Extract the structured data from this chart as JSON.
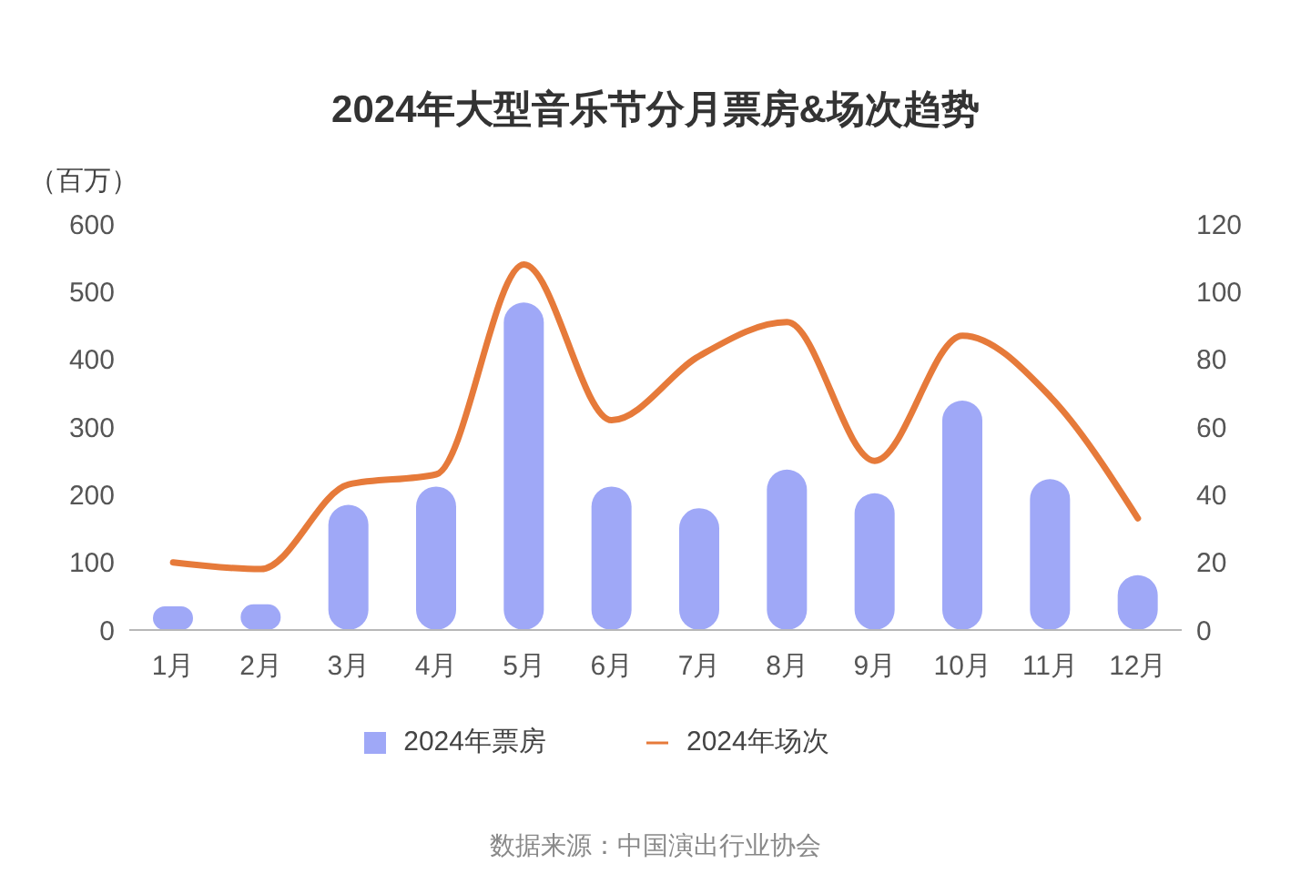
{
  "chart_data": {
    "type": "bar",
    "title": "2024年大型音乐节分月票房&场次趋势",
    "ylabel": "（百万）",
    "categories": [
      "1月",
      "2月",
      "3月",
      "4月",
      "5月",
      "6月",
      "7月",
      "8月",
      "9月",
      "10月",
      "11月",
      "12月"
    ],
    "series": [
      {
        "name": "2024年票房",
        "color": "#9fa8f7",
        "values": [
          35,
          38,
          185,
          212,
          484,
          212,
          180,
          237,
          202,
          339,
          223,
          81
        ]
      },
      {
        "name": "2024年场次",
        "type": "line",
        "axis": "y2",
        "color": "#e67a3a",
        "values": [
          20,
          18,
          43,
          46,
          108,
          62,
          81,
          91,
          50,
          87,
          69,
          33
        ]
      }
    ],
    "ylim": [
      0,
      600
    ],
    "yticks": [
      0,
      100,
      200,
      300,
      400,
      500,
      600
    ],
    "y2lim": [
      0,
      120
    ],
    "y2ticks": [
      0,
      20,
      40,
      60,
      80,
      100,
      120
    ],
    "legend": "bottom",
    "marker": "none",
    "annotations": [
      "数据来源：中国演出行业协会"
    ]
  }
}
